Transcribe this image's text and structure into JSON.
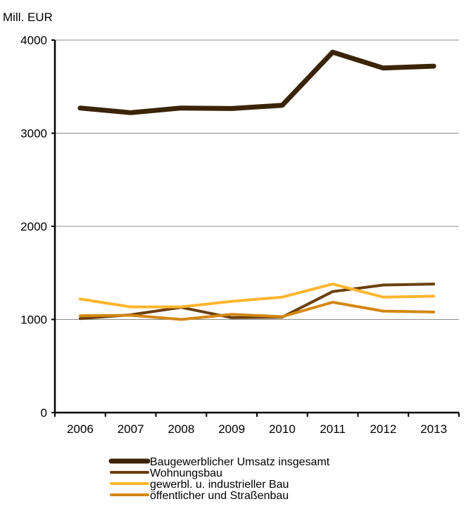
{
  "chart_data": {
    "type": "line",
    "unit_label": "Mill.  EUR",
    "categories": [
      "2006",
      "2007",
      "2008",
      "2009",
      "2010",
      "2011",
      "2012",
      "2013"
    ],
    "ylim": [
      0,
      4000
    ],
    "yticks": [
      "0",
      "1000",
      "2000",
      "3000",
      "4000"
    ],
    "grid": true,
    "legend_position": "bottom",
    "series": [
      {
        "name": "Baugewerblicher Umsatz insgesamt",
        "color": "#3b2407",
        "values": [
          3270,
          3220,
          3270,
          3265,
          3300,
          3870,
          3700,
          3720
        ]
      },
      {
        "name": "Wohnungsbau",
        "color": "#6b3f0d",
        "values": [
          1010,
          1050,
          1130,
          1020,
          1025,
          1300,
          1370,
          1380
        ]
      },
      {
        "name": "gewerbl. u. industrieller  Bau",
        "color": "#ffb52e",
        "values": [
          1220,
          1135,
          1135,
          1195,
          1240,
          1380,
          1240,
          1250
        ]
      },
      {
        "name": "öffentlicher und Straßenbau",
        "color": "#d28713",
        "values": [
          1040,
          1045,
          1000,
          1055,
          1030,
          1185,
          1090,
          1080
        ]
      }
    ]
  }
}
